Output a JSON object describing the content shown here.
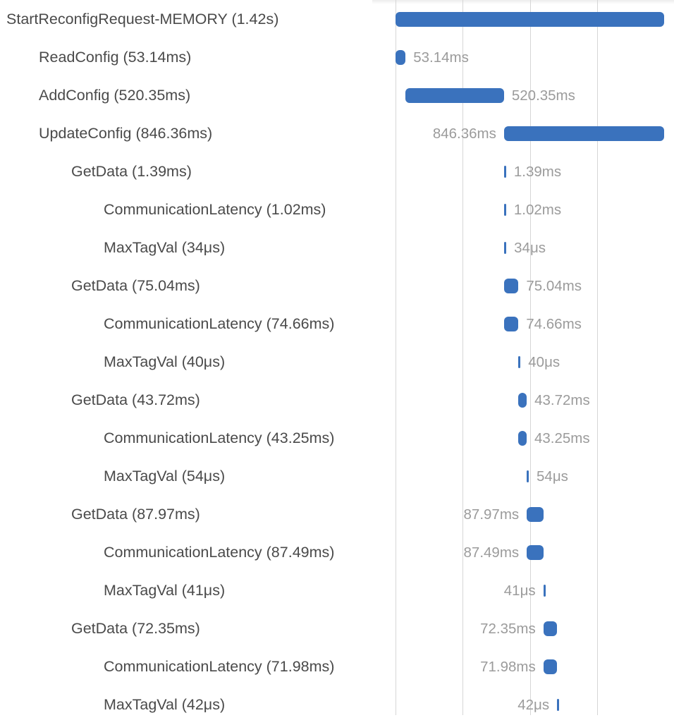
{
  "trace": {
    "spans": [
      {
        "name": "StartReconfigRequest-MEMORY",
        "duration": "1.42s",
        "depth": 0,
        "start_ms": 0,
        "duration_ms": 1420,
        "duration_label_side": "none"
      },
      {
        "name": "ReadConfig",
        "duration": "53.14ms",
        "depth": 1,
        "start_ms": 0,
        "duration_ms": 53.14,
        "duration_label_side": "right"
      },
      {
        "name": "AddConfig",
        "duration": "520.35ms",
        "depth": 1,
        "start_ms": 53.14,
        "duration_ms": 520.35,
        "duration_label_side": "right"
      },
      {
        "name": "UpdateConfig",
        "duration": "846.36ms",
        "depth": 1,
        "start_ms": 573.49,
        "duration_ms": 846.36,
        "duration_label_side": "left"
      },
      {
        "name": "GetData",
        "duration": "1.39ms",
        "depth": 2,
        "start_ms": 573.49,
        "duration_ms": 1.39,
        "duration_label_side": "right"
      },
      {
        "name": "CommunicationLatency",
        "duration": "1.02ms",
        "depth": 3,
        "start_ms": 573.49,
        "duration_ms": 1.02,
        "duration_label_side": "right"
      },
      {
        "name": "MaxTagVal",
        "duration": "34μs",
        "depth": 3,
        "start_ms": 574.51,
        "duration_ms": 0.034,
        "duration_label_side": "right"
      },
      {
        "name": "GetData",
        "duration": "75.04ms",
        "depth": 2,
        "start_ms": 574.9,
        "duration_ms": 75.04,
        "duration_label_side": "right"
      },
      {
        "name": "CommunicationLatency",
        "duration": "74.66ms",
        "depth": 3,
        "start_ms": 574.9,
        "duration_ms": 74.66,
        "duration_label_side": "right"
      },
      {
        "name": "MaxTagVal",
        "duration": "40μs",
        "depth": 3,
        "start_ms": 649.6,
        "duration_ms": 0.04,
        "duration_label_side": "right"
      },
      {
        "name": "GetData",
        "duration": "43.72ms",
        "depth": 2,
        "start_ms": 650.0,
        "duration_ms": 43.72,
        "duration_label_side": "right"
      },
      {
        "name": "CommunicationLatency",
        "duration": "43.25ms",
        "depth": 3,
        "start_ms": 650.0,
        "duration_ms": 43.25,
        "duration_label_side": "right"
      },
      {
        "name": "MaxTagVal",
        "duration": "54μs",
        "depth": 3,
        "start_ms": 693.3,
        "duration_ms": 0.054,
        "duration_label_side": "right"
      },
      {
        "name": "GetData",
        "duration": "87.97ms",
        "depth": 2,
        "start_ms": 693.8,
        "duration_ms": 87.97,
        "duration_label_side": "left"
      },
      {
        "name": "CommunicationLatency",
        "duration": "87.49ms",
        "depth": 3,
        "start_ms": 693.8,
        "duration_ms": 87.49,
        "duration_label_side": "left"
      },
      {
        "name": "MaxTagVal",
        "duration": "41μs",
        "depth": 3,
        "start_ms": 781.3,
        "duration_ms": 0.041,
        "duration_label_side": "left"
      },
      {
        "name": "GetData",
        "duration": "72.35ms",
        "depth": 2,
        "start_ms": 781.8,
        "duration_ms": 72.35,
        "duration_label_side": "left"
      },
      {
        "name": "CommunicationLatency",
        "duration": "71.98ms",
        "depth": 3,
        "start_ms": 781.8,
        "duration_ms": 71.98,
        "duration_label_side": "left"
      },
      {
        "name": "MaxTagVal",
        "duration": "42μs",
        "depth": 3,
        "start_ms": 853.8,
        "duration_ms": 0.042,
        "duration_label_side": "left"
      }
    ],
    "total_ms": 1420,
    "bar_color": "#3a72bd",
    "label_color": "#4a4a4a",
    "duration_color": "#9b9b9b",
    "gridline_color": "#d6d6d6"
  }
}
